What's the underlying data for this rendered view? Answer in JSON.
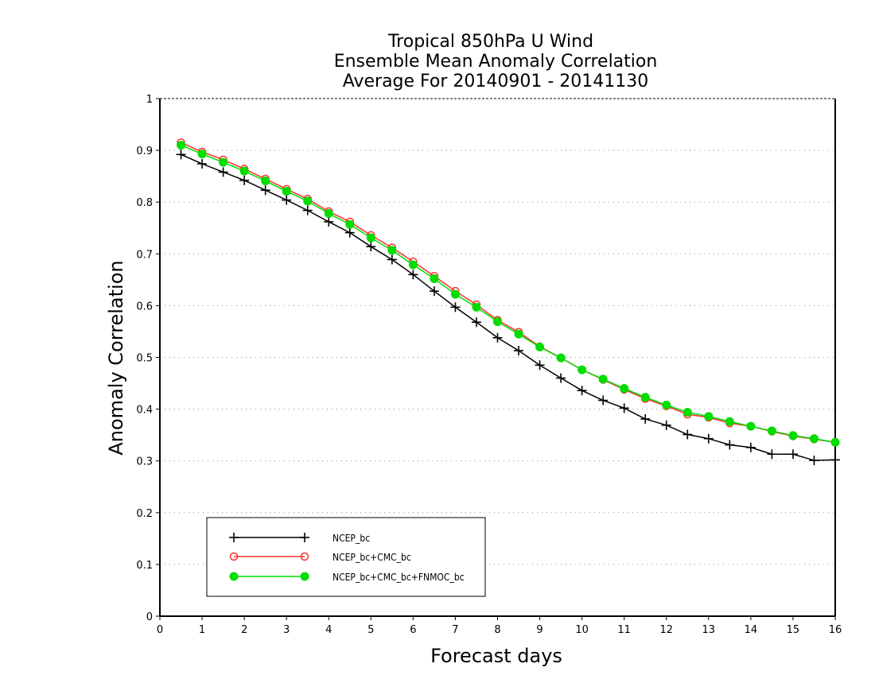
{
  "chart_data": {
    "type": "line",
    "title_lines": [
      "Tropical 850hPa U Wind",
      "Ensemble Mean Anomaly Correlation",
      "Average For 20140901 - 20141130"
    ],
    "xlabel": "Forecast days",
    "ylabel": "Anomaly Correlation",
    "xlim": [
      0,
      16
    ],
    "ylim": [
      0,
      1
    ],
    "x_ticks": [
      "0",
      "1",
      "2",
      "3",
      "4",
      "5",
      "6",
      "7",
      "8",
      "9",
      "10",
      "11",
      "12",
      "13",
      "14",
      "15",
      "16"
    ],
    "y_ticks": [
      "0",
      "0.1",
      "0.2",
      "0.3",
      "0.4",
      "0.5",
      "0.6",
      "0.7",
      "0.8",
      "0.9",
      "1"
    ],
    "grid": "dotted-horizontal",
    "legend_position": "bottom-left",
    "x": [
      0.5,
      1.0,
      1.5,
      2.0,
      2.5,
      3.0,
      3.5,
      4.0,
      4.5,
      5.0,
      5.5,
      6.0,
      6.5,
      7.0,
      7.5,
      8.0,
      8.5,
      9.0,
      9.5,
      10.0,
      10.5,
      11.0,
      11.5,
      12.0,
      12.5,
      13.0,
      13.5,
      14.0,
      14.5,
      15.0,
      15.5,
      16.0
    ],
    "series": [
      {
        "name": "NCEP_bc",
        "color": "#000000",
        "marker": "plus",
        "values": [
          0.892,
          0.874,
          0.858,
          0.842,
          0.823,
          0.804,
          0.784,
          0.762,
          0.741,
          0.714,
          0.689,
          0.66,
          0.628,
          0.597,
          0.568,
          0.538,
          0.513,
          0.485,
          0.46,
          0.436,
          0.417,
          0.402,
          0.381,
          0.369,
          0.351,
          0.343,
          0.331,
          0.326,
          0.313,
          0.313,
          0.301,
          0.302
        ]
      },
      {
        "name": "NCEP_bc+CMC_bc",
        "color": "#ff3030",
        "marker": "open-circle",
        "values": [
          0.915,
          0.897,
          0.882,
          0.864,
          0.845,
          0.825,
          0.806,
          0.782,
          0.762,
          0.736,
          0.712,
          0.685,
          0.657,
          0.628,
          0.602,
          0.572,
          0.549,
          0.521,
          0.499,
          0.476,
          0.457,
          0.438,
          0.42,
          0.406,
          0.39,
          0.384,
          0.373,
          0.367,
          0.357,
          0.348,
          0.342,
          0.336
        ]
      },
      {
        "name": "NCEP_bc+CMC_bc+FNMOC_bc",
        "color": "#00dd00",
        "marker": "filled-circle",
        "values": [
          0.91,
          0.893,
          0.877,
          0.86,
          0.841,
          0.821,
          0.802,
          0.778,
          0.757,
          0.731,
          0.707,
          0.679,
          0.652,
          0.622,
          0.597,
          0.569,
          0.545,
          0.52,
          0.499,
          0.476,
          0.458,
          0.44,
          0.423,
          0.408,
          0.394,
          0.386,
          0.376,
          0.367,
          0.358,
          0.349,
          0.343,
          0.336
        ]
      }
    ]
  }
}
